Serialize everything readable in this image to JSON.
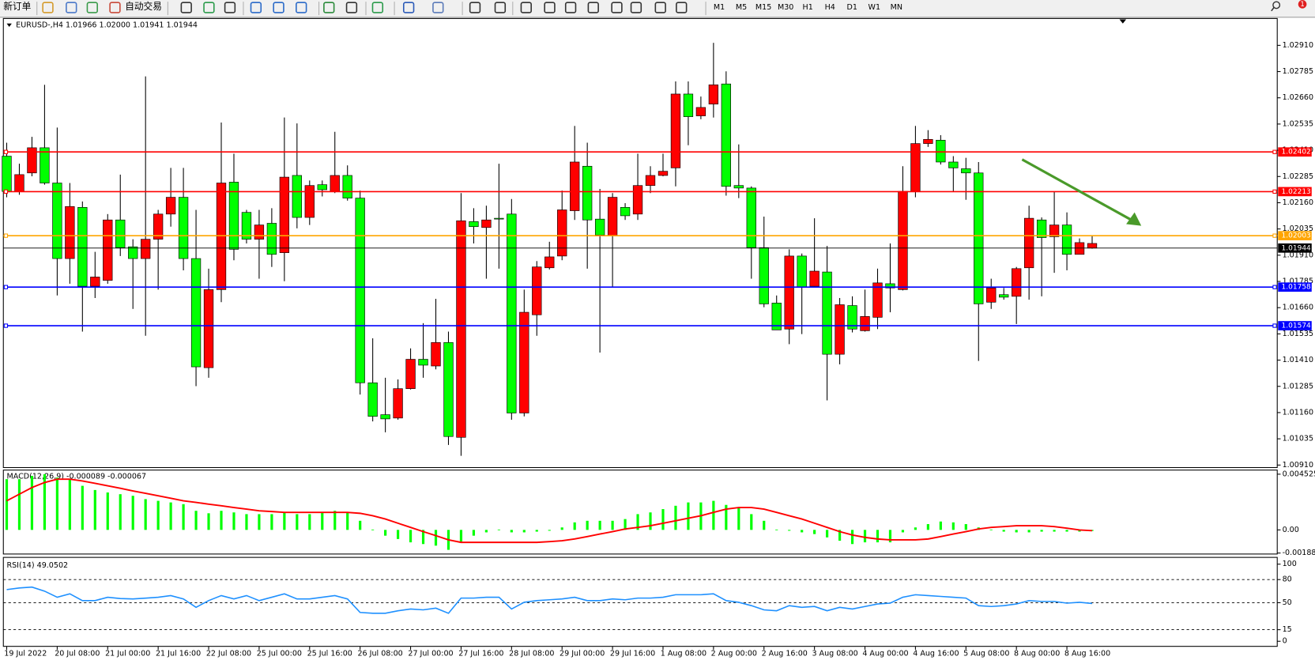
{
  "toolbar": {
    "buttons": [
      "新订单",
      "自动交易"
    ],
    "timeframes": [
      "M1",
      "M5",
      "M15",
      "M30",
      "H1",
      "H4",
      "D1",
      "W1",
      "MN"
    ],
    "badge": 1
  },
  "chart_data": [
    {
      "type": "candlestick",
      "title": "EURUSD-,H4 1.01966 1.02000 1.01941 1.01944",
      "categories": [
        "19 Jul 2022",
        null,
        null,
        null,
        "20 Jul 08:00",
        null,
        null,
        null,
        "21 Jul 00:00",
        null,
        null,
        null,
        "21 Jul 16:00",
        null,
        null,
        null,
        "22 Jul 08:00",
        null,
        null,
        null,
        "25 Jul 00:00",
        null,
        null,
        null,
        "25 Jul 16:00",
        null,
        null,
        null,
        "26 Jul 08:00",
        null,
        null,
        null,
        "27 Jul 00:00",
        null,
        null,
        null,
        "27 Jul 16:00",
        null,
        null,
        null,
        "28 Jul 08:00",
        null,
        null,
        null,
        "29 Jul 00:00",
        null,
        null,
        null,
        "29 Jul 16:00",
        null,
        null,
        null,
        "1 Aug 08:00",
        null,
        null,
        null,
        "2 Aug 00:00",
        null,
        null,
        null,
        "2 Aug 16:00",
        null,
        null,
        null,
        "3 Aug 08:00",
        null,
        null,
        null,
        "4 Aug 00:00",
        null,
        null,
        null,
        "4 Aug 16:00",
        null,
        null,
        null,
        "5 Aug 08:00",
        null,
        null,
        null,
        "8 Aug 00:00",
        null,
        null,
        null,
        "8 Aug 16:00",
        null,
        null
      ],
      "open": [
        1.02214,
        1.02294,
        1.02422,
        1.02254,
        1.01894,
        1.02142,
        1.01762,
        1.01806,
        1.02078,
        1.01946,
        1.01894,
        1.01986,
        1.02106,
        1.02186,
        1.01894,
        1.01378,
        1.01746,
        1.02254,
        1.01938,
        1.01986,
        1.02054,
        1.01914,
        1.02282,
        1.0209,
        1.02242,
        1.02222,
        1.0229,
        1.02182,
        1.01302,
        1.01142,
        1.0113,
        1.01274,
        1.01414,
        1.01386,
        1.01494,
        1.01046,
        1.02074,
        1.02046,
        1.02078,
        1.02082,
        1.01158,
        1.01638,
        1.01854,
        1.01902,
        1.02126,
        1.02354,
        1.02078,
        1.02006,
        1.02186,
        1.02098,
        1.02242,
        1.0229,
        1.0231,
        1.02678,
        1.0257,
        1.02614,
        1.02722,
        1.02238,
        1.0223,
        1.01946,
        1.01678,
        1.01554,
        1.01906,
        1.01758,
        1.01834,
        1.01438,
        1.01674,
        1.01558,
        1.01618,
        1.01778,
        1.01754,
        1.02214,
        1.02442,
        1.02462,
        1.02354,
        1.02326,
        1.02302,
        1.01678,
        1.01754,
        1.0171,
        1.01846,
        1.02086,
        1.01994,
        1.02054,
        1.01914,
        1.0197,
        1.01966
      ],
      "high": [
        1.02446,
        1.02346,
        1.02474,
        1.02722,
        1.02518,
        1.02254,
        1.02166,
        1.01926,
        1.02106,
        1.02294,
        1.01986,
        1.02762,
        1.02126,
        1.02326,
        1.02326,
        1.02126,
        1.01846,
        1.02542,
        1.02394,
        1.02126,
        1.02126,
        1.02134,
        1.02566,
        1.02538,
        1.02266,
        1.02266,
        1.02498,
        1.02338,
        1.02218,
        1.01514,
        1.01326,
        1.01318,
        1.01466,
        1.01586,
        1.01702,
        1.01546,
        1.02206,
        1.02134,
        1.02146,
        1.02346,
        1.02178,
        1.01746,
        1.01882,
        1.01974,
        1.02218,
        1.02526,
        1.02446,
        1.02226,
        1.02206,
        1.02158,
        1.02394,
        1.02334,
        1.02394,
        1.02738,
        1.02738,
        1.02666,
        1.02922,
        1.02786,
        1.02438,
        1.02238,
        1.02094,
        1.01718,
        1.01938,
        1.01918,
        1.02086,
        1.01954,
        1.01706,
        1.01714,
        1.01746,
        1.01846,
        1.01966,
        1.02334,
        1.02526,
        1.02506,
        1.02482,
        1.02382,
        1.02374,
        1.02354,
        1.01798,
        1.01754,
        1.01854,
        1.02146,
        1.0209,
        1.02214,
        1.02114,
        1.0199,
        1.02
      ],
      "low": [
        1.02186,
        1.02198,
        1.02286,
        1.02246,
        1.01718,
        1.01774,
        1.01546,
        1.01706,
        1.01774,
        1.01906,
        1.01654,
        1.01526,
        1.01746,
        1.02046,
        1.01838,
        1.01286,
        1.01326,
        1.01686,
        1.01886,
        1.01966,
        1.01798,
        1.01854,
        1.01786,
        1.02038,
        1.02054,
        1.0219,
        1.02206,
        1.0217,
        1.01246,
        1.01118,
        1.01066,
        1.01126,
        1.0127,
        1.01326,
        1.01366,
        1.01006,
        1.00954,
        1.01966,
        1.01798,
        1.01846,
        1.01126,
        1.01142,
        1.01526,
        1.01842,
        1.01886,
        1.02078,
        1.01846,
        1.01446,
        1.01758,
        1.02078,
        1.02078,
        1.02206,
        1.02286,
        1.02238,
        1.02434,
        1.02558,
        1.02566,
        1.02194,
        1.02182,
        1.01798,
        1.01662,
        1.01554,
        1.01486,
        1.01534,
        1.01758,
        1.01218,
        1.0139,
        1.01542,
        1.01546,
        1.01558,
        1.01638,
        1.01742,
        1.02186,
        1.02426,
        1.02342,
        1.02214,
        1.02174,
        1.01406,
        1.01654,
        1.01698,
        1.01582,
        1.01698,
        1.01714,
        1.01826,
        1.01838,
        1.01918,
        1.01941
      ],
      "close": [
        1.02382,
        1.02214,
        1.02302,
        1.02422,
        1.02254,
        1.01894,
        1.02138,
        1.01762,
        1.0179,
        1.02078,
        1.0195,
        1.01894,
        1.01986,
        1.02106,
        1.02186,
        1.01894,
        1.01374,
        1.01746,
        1.02258,
        1.02114,
        1.01986,
        1.02062,
        1.01922,
        1.0229,
        1.0209,
        1.02246,
        1.02214,
        1.0229,
        1.02182,
        1.01302,
        1.0115,
        1.01134,
        1.01274,
        1.01414,
        1.01382,
        1.01494,
        1.01042,
        1.0207,
        1.02042,
        1.02086,
        1.02106,
        1.01158,
        1.01626,
        1.0185,
        1.01906,
        1.02122,
        1.02334,
        1.02082,
        1.02002,
        1.02138,
        1.02106,
        1.02242,
        1.0229,
        1.02326,
        1.02678,
        1.02574,
        1.0263,
        1.02726,
        1.02242,
        1.0223,
        1.01946,
        1.01682,
        1.01558,
        1.01906,
        1.01762,
        1.0183,
        1.01438,
        1.0167,
        1.0155,
        1.01614,
        1.01774,
        1.01746,
        1.02214,
        1.02442,
        1.02458,
        1.02354,
        1.02322,
        1.02302,
        1.01686,
        1.01722,
        1.01714,
        1.0185,
        1.02078,
        1.01998,
        1.02054,
        1.01914,
        1.01944
      ],
      "up_color": "#00ff00",
      "down_color": "#ff0000",
      "ylim": [
        1.00898,
        1.03038
      ],
      "yticks": [
        {
          "value": 1.0291,
          "label": "1.02910"
        },
        1.02785,
        {
          "value": 1.0266,
          "label": "1.02660"
        },
        1.02535,
        {
          "value": 1.0241,
          "label": "1.02410"
        },
        1.02285,
        {
          "value": 1.0216,
          "label": "1.02160"
        },
        1.02035,
        {
          "value": 1.0191,
          "label": "1.01910"
        },
        1.01785,
        {
          "value": 1.0166,
          "label": "1.01660"
        },
        1.01535,
        {
          "value": 1.0141,
          "label": "1.01410"
        },
        1.01285,
        {
          "value": 1.0116,
          "label": "1.01160"
        },
        1.01035,
        {
          "value": 1.0091,
          "label": "1.00910"
        }
      ],
      "levels": [
        {
          "value": 1.02402,
          "color": "#ff0000"
        },
        {
          "value": 1.02213,
          "color": "#ff0000"
        },
        {
          "value": 1.02003,
          "color": "#ffa500"
        },
        {
          "value": 1.01758,
          "color": "#0000ff"
        },
        {
          "value": 1.01574,
          "color": "#0000ff"
        }
      ],
      "current_price": 1.01944
    },
    {
      "type": "macd",
      "title": "MACD(12,26,9) -0.000089 -0.000067",
      "series": [
        {
          "style": "histogram",
          "color": "#00ff00",
          "values": [
            0.00412,
            0.00412,
            0.00439,
            0.00452,
            0.00425,
            0.00412,
            0.00358,
            0.00324,
            0.00304,
            0.0029,
            0.00277,
            0.0025,
            0.00236,
            0.00223,
            0.00209,
            0.00155,
            0.00135,
            0.00155,
            0.00142,
            0.00128,
            0.00128,
            0.00128,
            0.00142,
            0.00128,
            0.00128,
            0.00142,
            0.00155,
            0.00142,
            0.00074,
            3e-05,
            -0.00047,
            -0.00074,
            -0.00101,
            -0.00115,
            -0.00128,
            -0.00162,
            -0.00095,
            -0.00047,
            -0.0002,
            3e-05,
            -0.0002,
            -0.0002,
            -0.00014,
            -7e-05,
            0.0002,
            0.00061,
            0.00074,
            0.00074,
            0.00074,
            0.00088,
            0.00128,
            0.00142,
            0.00169,
            0.00196,
            0.00223,
            0.00223,
            0.00236,
            0.00203,
            0.00182,
            0.00128,
            0.00074,
            3e-05,
            -7e-05,
            -0.0002,
            -0.00034,
            -0.00061,
            -0.00088,
            -0.00115,
            -0.00101,
            -0.00101,
            -0.00101,
            -0.0002,
            0.0002,
            0.00047,
            0.00068,
            0.00061,
            0.00047,
            0.0002,
            3e-05,
            -0.00014,
            -0.0002,
            -0.0002,
            -0.00014,
            -0.00014,
            -0.00014,
            -0.00014,
            -8.9e-05
          ]
        },
        {
          "style": "line",
          "color": "#ff0000",
          "values": [
            0.00236,
            0.0029,
            0.00344,
            0.00385,
            0.00412,
            0.00412,
            0.00398,
            0.00378,
            0.00358,
            0.00338,
            0.00317,
            0.00297,
            0.00277,
            0.00257,
            0.00236,
            0.00223,
            0.00209,
            0.00196,
            0.00182,
            0.00169,
            0.00155,
            0.00149,
            0.00142,
            0.00142,
            0.00142,
            0.00142,
            0.00142,
            0.00142,
            0.00135,
            0.00115,
            0.00088,
            0.00054,
            0.0002,
            -0.00014,
            -0.00047,
            -0.00081,
            -0.00101,
            -0.00101,
            -0.00101,
            -0.00101,
            -0.00101,
            -0.00101,
            -0.00101,
            -0.00095,
            -0.00088,
            -0.00074,
            -0.00054,
            -0.00034,
            -0.00014,
            7e-05,
            0.0002,
            0.00034,
            0.00054,
            0.00074,
            0.00095,
            0.00115,
            0.00142,
            0.00169,
            0.00182,
            0.00182,
            0.00169,
            0.00142,
            0.00115,
            0.00088,
            0.00054,
            0.0002,
            -0.00014,
            -0.00041,
            -0.00061,
            -0.00074,
            -0.00081,
            -0.00081,
            -0.00081,
            -0.00074,
            -0.00054,
            -0.00034,
            -0.00014,
            7e-05,
            0.0002,
            0.00027,
            0.00034,
            0.00034,
            0.00034,
            0.00027,
            0.00014,
            0,
            -6.7e-05
          ]
        }
      ],
      "ylim": [
        -0.00196,
        0.00479
      ],
      "yticks": [
        0.004525,
        {
          "value": 0,
          "label": "0.00"
        },
        -0.00188
      ]
    },
    {
      "type": "line",
      "title": "RSI(14) 49.0502",
      "series": [
        {
          "color": "#1e90ff",
          "values": [
            67.0,
            69.2,
            70.3,
            65.0,
            57.1,
            61.5,
            52.7,
            52.7,
            57.1,
            55.5,
            54.9,
            55.9,
            57.1,
            59.3,
            54.9,
            44.0,
            52.7,
            59.3,
            54.9,
            59.3,
            52.7,
            57.1,
            61.5,
            54.9,
            54.9,
            57.1,
            59.3,
            54.9,
            37.4,
            36.3,
            36.3,
            39.6,
            41.8,
            40.7,
            42.9,
            36.3,
            56.0,
            56.0,
            57.1,
            57.1,
            41.8,
            50.5,
            52.7,
            53.8,
            54.9,
            57.1,
            52.7,
            52.7,
            54.9,
            53.8,
            56.0,
            56.0,
            57.1,
            60.4,
            60.4,
            60.4,
            61.5,
            52.7,
            50.5,
            46.2,
            40.7,
            39.6,
            46.2,
            44.0,
            45.1,
            39.6,
            44.0,
            41.8,
            45.1,
            48.4,
            49.5,
            57.1,
            60.4,
            59.3,
            58.2,
            57.1,
            56.0,
            46.2,
            45.1,
            46.2,
            48.4,
            52.7,
            51.6,
            51.6,
            49.5,
            50.5,
            49.0502
          ]
        }
      ],
      "ylim": [
        -6.6,
        107.7
      ],
      "yticks": [
        100,
        80,
        50,
        15,
        0
      ],
      "levels": [
        80,
        50,
        15
      ]
    }
  ]
}
